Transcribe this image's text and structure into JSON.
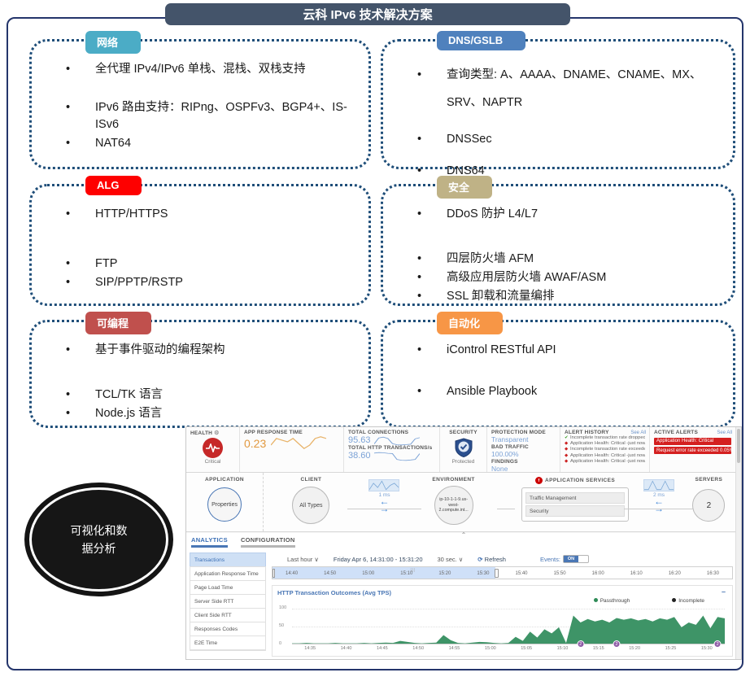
{
  "slide": {
    "title": "云科 IPv6 技术解决方案",
    "ellipse_line1": "可视化和数",
    "ellipse_line2": "据分析"
  },
  "boxes": [
    {
      "tag": "网络",
      "tag_color": "#4bacc6",
      "items": [
        "全代理 IPv4/IPv6 单栈、混栈、双栈支持",
        "IPv6 路由支持：RIPng、OSPFv3、BGP4+、IS-ISv6",
        "NAT64"
      ]
    },
    {
      "tag": "DNS/GSLB",
      "tag_color": "#4f81bd",
      "items": [
        "查询类型: A、AAAA、DNAME、CNAME、MX、SRV、NAPTR",
        "DNSSec",
        "DNS64"
      ]
    },
    {
      "tag": "ALG",
      "tag_color": "#fe0000",
      "items": [
        "HTTP/HTTPS",
        "FTP",
        "SIP/PPTP/RSTP"
      ]
    },
    {
      "tag": "安全",
      "tag_color": "#bfb286",
      "items": [
        "DDoS 防护 L4/L7",
        "四层防火墙 AFM",
        "高级应用层防火墙 AWAF/ASM",
        "SSL 卸载和流量编排"
      ]
    },
    {
      "tag": "可编程",
      "tag_color": "#c0504d",
      "items": [
        "基于事件驱动的编程架构",
        "TCL/TK 语言",
        "Node.js 语言"
      ]
    },
    {
      "tag": "自动化",
      "tag_color": "#f79646",
      "items": [
        "iControl RESTful API",
        "Ansible Playbook"
      ]
    }
  ],
  "dashboard": {
    "health": {
      "label": "HEALTH",
      "status": "Critical"
    },
    "metrics": {
      "app_response": {
        "label": "APP RESPONSE TIME",
        "value": "0.23",
        "spark": [
          0.22,
          0.3,
          0.28,
          0.26,
          0.3,
          0.24,
          0.18,
          0.22,
          0.3,
          0.32,
          0.3
        ]
      },
      "connections": {
        "label": "TOTAL CONNECTIONS",
        "value": "95.63",
        "spark": [
          60,
          95,
          100,
          92,
          62,
          55,
          54,
          56,
          58,
          90,
          97
        ]
      },
      "transactions": {
        "label": "TOTAL HTTP TRANSACTIONS/s",
        "value": "38.60",
        "spark": [
          92,
          96,
          95,
          90,
          88,
          42,
          36,
          35,
          38,
          42,
          88
        ]
      }
    },
    "security": {
      "label": "SECURITY",
      "status": "Protected",
      "protection_mode_label": "PROTECTION MODE",
      "protection_mode": "Transparent",
      "bad_traffic_label": "BAD TRAFFIC",
      "bad_traffic": "100.00%",
      "findings_label": "FINDINGS",
      "findings": "None"
    },
    "alert_history": {
      "label": "ALERT HISTORY",
      "see_all": "See All",
      "items": [
        {
          "icon": "check",
          "text": "Incomplete transaction rate dropped below 0... -just now"
        },
        {
          "icon": "alert",
          "text": "Application Health: Critical -just now"
        },
        {
          "icon": "alert",
          "text": "Incomplete transaction rate exceeded 0.01% -just now"
        },
        {
          "icon": "alert",
          "text": "Application Health: Critical -just now"
        },
        {
          "icon": "alert",
          "text": "Application Health: Critical -just now"
        }
      ]
    },
    "active_alerts": {
      "label": "ACTIVE ALERTS",
      "see_all": "See All",
      "items": [
        "Application Health: Critical",
        "Request error rate exceeded 0.05%"
      ]
    },
    "topology": {
      "application_label": "APPLICATION",
      "application_node": "Properties",
      "client_label": "CLIENT",
      "client_node": "All Types",
      "client_spark": [
        3,
        6,
        4,
        7,
        3,
        5,
        6,
        4
      ],
      "environment_label": "ENVIRONMENT",
      "environment_node": "ip-10-1-1-9.us-west-2.compute.int...",
      "services_label": "APPLICATION SERVICES",
      "services": [
        "Traffic Management",
        "Security"
      ],
      "services_spark": [
        2,
        2,
        3,
        2,
        2,
        3,
        2,
        2
      ],
      "servers_label": "SERVERS",
      "servers_count": "2",
      "latency_client": "1 ms",
      "latency_servers": "2 ms"
    },
    "analytics": {
      "tabs": [
        "ANALYTICS",
        "CONFIGURATION"
      ],
      "sidebar": [
        "Transactions",
        "Application Response Time",
        "Page Load Time",
        "Server Side RTT",
        "Client Side RTT",
        "Responses Codes",
        "E2E Time"
      ],
      "controls": {
        "range": "Last hour ∨",
        "date": "Friday Apr 6, 14:31:00 - 15:31:20",
        "interval": "30 sec. ∨",
        "refresh": "Refresh",
        "events_label": "Events:",
        "events_state": "ON"
      },
      "timeline_ticks": [
        "14:40",
        "14:50",
        "15:00",
        "15:10",
        "15:20",
        "15:30",
        "15:40",
        "15:50",
        "16:00",
        "16:10",
        "16:20",
        "16:30"
      ]
    }
  },
  "chart_data": {
    "type": "area",
    "title": "HTTP Transaction Outcomes (Avg TPS)",
    "legend": [
      {
        "name": "Passthrough",
        "color": "#2e8b57"
      },
      {
        "name": "Incomplete",
        "color": "#222222"
      }
    ],
    "x_start": "14:31",
    "x_end": "15:31",
    "x_ticks": [
      "14:35",
      "14:40",
      "14:45",
      "14:50",
      "14:55",
      "15:00",
      "15:05",
      "15:10",
      "15:15",
      "15:20",
      "15:25",
      "15:30"
    ],
    "y_ticks": [
      "100",
      "50",
      "0"
    ],
    "ylim": [
      0,
      100
    ],
    "grid": true,
    "legend_position": "top-right",
    "series": [
      {
        "name": "Passthrough",
        "color": "#3e9467",
        "values": [
          1,
          1,
          2,
          1,
          1,
          1,
          2,
          1,
          1,
          1,
          2,
          1,
          2,
          3,
          2,
          8,
          5,
          2,
          1,
          2,
          3,
          25,
          10,
          2,
          1,
          3,
          5,
          4,
          2,
          1,
          2,
          20,
          8,
          35,
          18,
          42,
          30,
          48,
          2,
          82,
          62,
          72,
          65,
          70,
          62,
          75,
          70,
          74,
          68,
          72,
          65,
          74,
          70,
          78,
          48,
          62,
          55,
          82,
          45,
          78,
          74
        ]
      }
    ],
    "events": [
      {
        "time": "15:11",
        "count": "2"
      },
      {
        "time": "15:16",
        "count": "2"
      },
      {
        "time": "15:30",
        "count": "2"
      }
    ]
  }
}
